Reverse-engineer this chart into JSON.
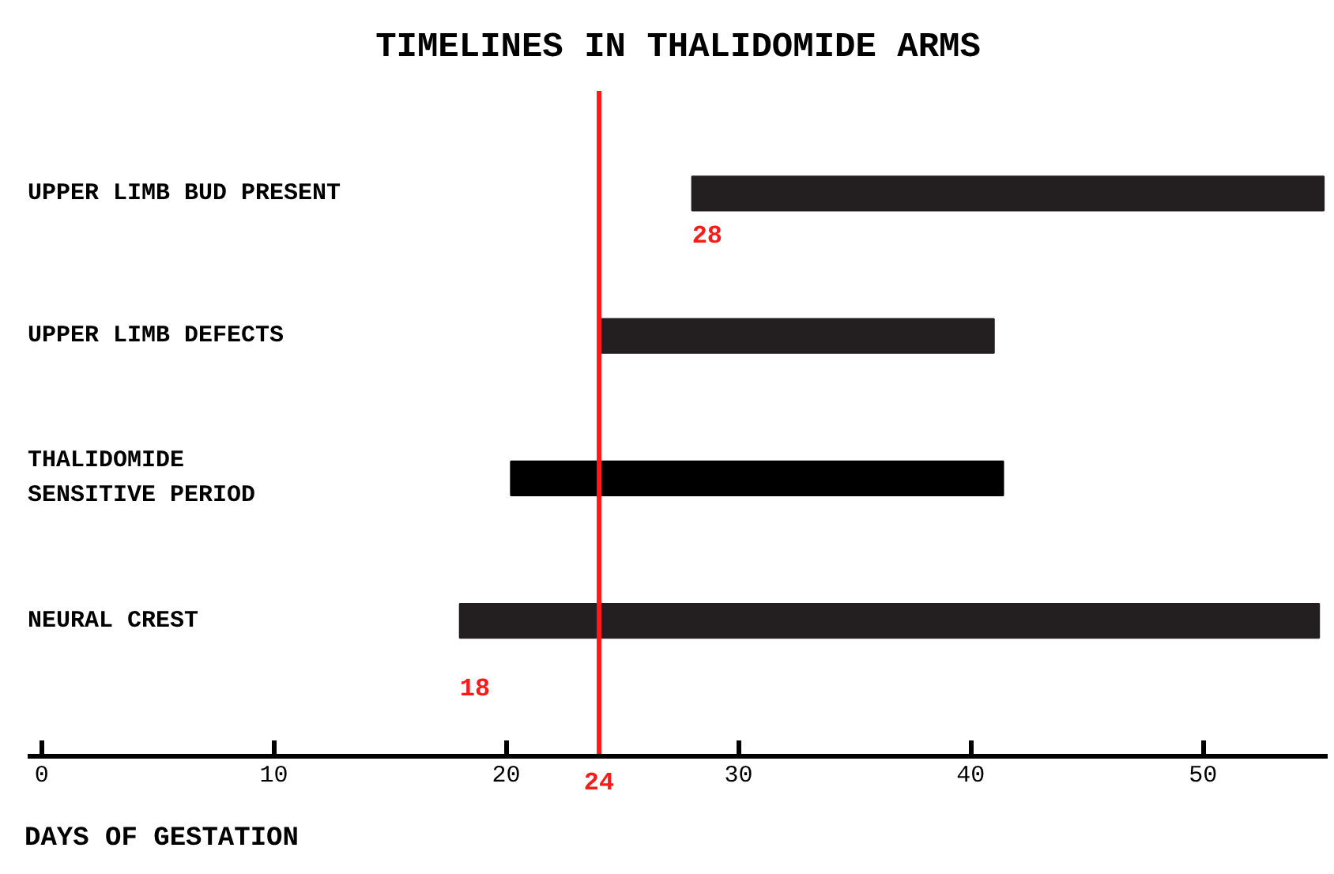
{
  "chart_data": {
    "type": "bar",
    "orientation": "horizontal",
    "title": "TIMELINES IN THALIDOMIDE ARMS",
    "xlabel": "DAYS OF GESTATION",
    "categories": [
      "UPPER LIMB BUD PRESENT",
      "UPPER LIMB DEFECTS",
      "THALIDOMIDE\nSENSITIVE PERIOD",
      "NEURAL CREST"
    ],
    "base": [
      28,
      24,
      20.2,
      18
    ],
    "values": [
      27.2,
      17,
      21.2,
      37
    ],
    "colors": [
      "#231f20",
      "#231f20",
      "#000000",
      "#231f20"
    ],
    "xlim": [
      -0.6,
      55.4
    ],
    "xticks": [
      0,
      10,
      20,
      30,
      40,
      50
    ],
    "ref_lines": [
      {
        "axis": "x",
        "value": 24,
        "label": "24",
        "color": "#ff1a1a"
      }
    ],
    "annotations": [
      {
        "text": "28",
        "x": 28,
        "y": "UPPER LIMB BUD PRESENT"
      },
      {
        "text": "18",
        "x": 18,
        "y": "NEURAL CREST"
      }
    ],
    "grid": false
  }
}
